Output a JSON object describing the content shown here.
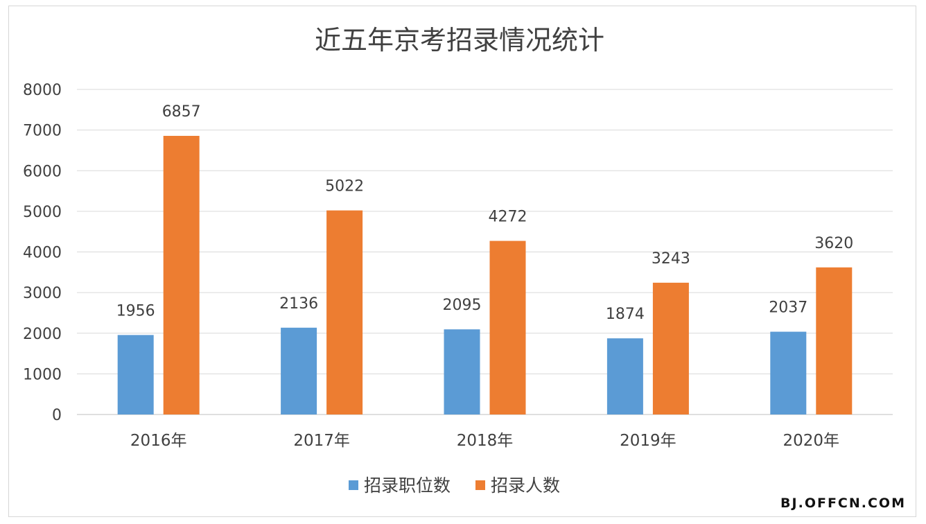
{
  "chart_data": {
    "type": "bar",
    "title": "近五年京考招录情况统计",
    "categories": [
      "2016年",
      "2017年",
      "2018年",
      "2019年",
      "2020年"
    ],
    "series": [
      {
        "name": "招录职位数",
        "values": [
          1956,
          2136,
          2095,
          1874,
          2037
        ],
        "color": "#5b9bd5"
      },
      {
        "name": "招录人数",
        "values": [
          6857,
          5022,
          4272,
          3243,
          3620
        ],
        "color": "#ed7d31"
      }
    ],
    "ylim": [
      0,
      8000
    ],
    "yticks": [
      0,
      1000,
      2000,
      3000,
      4000,
      5000,
      6000,
      7000,
      8000
    ],
    "grid": true,
    "legend": "bottom",
    "data_labels": true,
    "xlabel": "",
    "ylabel": ""
  },
  "watermark": "BJ.OFFCN.COM"
}
